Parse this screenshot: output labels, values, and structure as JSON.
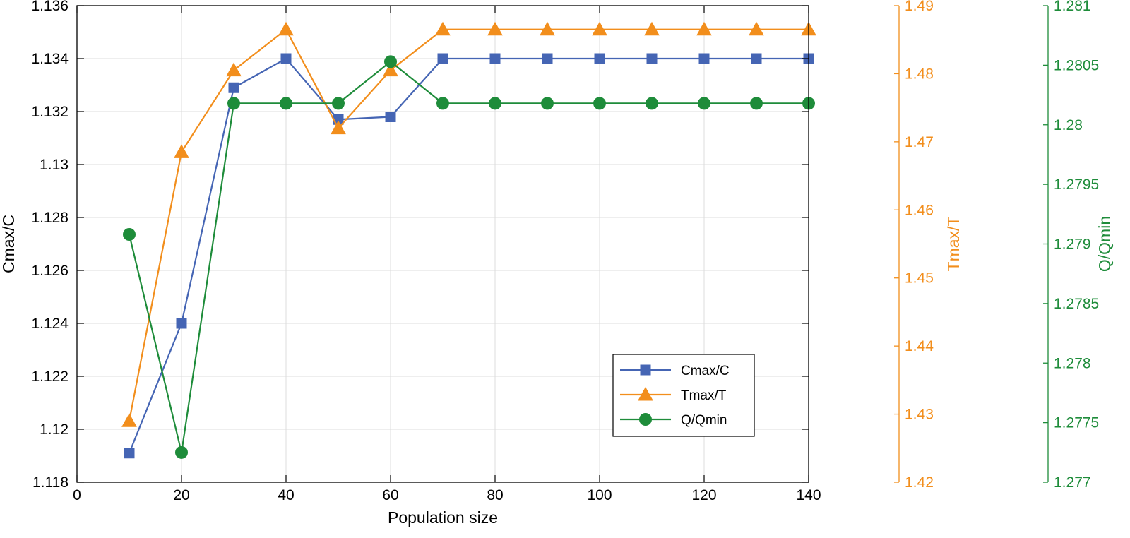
{
  "chart_data": {
    "type": "line",
    "xlabel": "Population size",
    "x": [
      10,
      20,
      30,
      40,
      50,
      60,
      70,
      80,
      90,
      100,
      110,
      120,
      130,
      140
    ],
    "xlim": [
      0,
      140
    ],
    "xticks": [
      0,
      20,
      40,
      60,
      80,
      100,
      120,
      140
    ],
    "grid": true,
    "legend_location": "bottom-right",
    "axes": [
      {
        "id": "left",
        "label": "Cmax/C",
        "color": "#000000",
        "ylim": [
          1.118,
          1.136
        ],
        "ticks": [
          1.118,
          1.12,
          1.122,
          1.124,
          1.126,
          1.128,
          1.13,
          1.132,
          1.134,
          1.136
        ],
        "tick_labels": [
          "1.118",
          "1.12",
          "1.122",
          "1.124",
          "1.126",
          "1.128",
          "1.13",
          "1.132",
          "1.134",
          "1.136"
        ]
      },
      {
        "id": "right1",
        "label": "Tmax/T",
        "color": "#F28E1C",
        "ylim": [
          1.42,
          1.49
        ],
        "ticks": [
          1.42,
          1.43,
          1.44,
          1.45,
          1.46,
          1.47,
          1.48,
          1.49
        ],
        "tick_labels": [
          "1.42",
          "1.43",
          "1.44",
          "1.45",
          "1.46",
          "1.47",
          "1.48",
          "1.49"
        ]
      },
      {
        "id": "right2",
        "label": "Q/Qmin",
        "color": "#1E8C3A",
        "ylim": [
          1.277,
          1.281
        ],
        "ticks": [
          1.277,
          1.2775,
          1.278,
          1.2785,
          1.279,
          1.2795,
          1.28,
          1.2805,
          1.281
        ],
        "tick_labels": [
          "1.277",
          "1.2775",
          "1.278",
          "1.2785",
          "1.279",
          "1.2795",
          "1.28",
          "1.2805",
          "1.281"
        ]
      }
    ],
    "series": [
      {
        "name": "Cmax/C",
        "axis": "left",
        "color": "#4565B4",
        "marker": "square",
        "values": [
          1.1191,
          1.124,
          1.1329,
          1.134,
          1.1317,
          1.1318,
          1.134,
          1.134,
          1.134,
          1.134,
          1.134,
          1.134,
          1.134,
          1.134
        ]
      },
      {
        "name": "Tmax/T",
        "axis": "right1",
        "color": "#F28E1C",
        "marker": "triangle",
        "values": [
          1.429,
          1.4685,
          1.4805,
          1.4865,
          1.472,
          1.4805,
          1.4865,
          1.4865,
          1.4865,
          1.4865,
          1.4865,
          1.4865,
          1.4865,
          1.4865
        ]
      },
      {
        "name": "Q/Qmin",
        "axis": "right2",
        "color": "#1E8C3A",
        "marker": "circle",
        "values": [
          1.27908,
          1.27725,
          1.28018,
          1.28018,
          1.28018,
          1.28053,
          1.28018,
          1.28018,
          1.28018,
          1.28018,
          1.28018,
          1.28018,
          1.28018,
          1.28018
        ]
      }
    ]
  }
}
